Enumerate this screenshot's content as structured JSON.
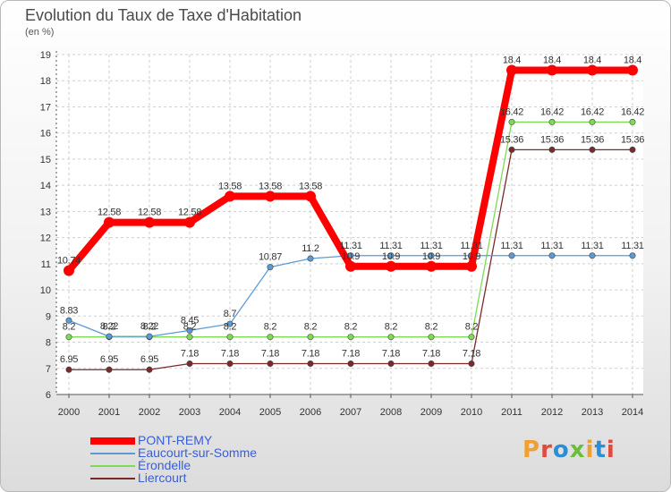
{
  "title": "Evolution du Taux de Taxe d'Habitation",
  "subtitle": "(en %)",
  "logo": {
    "text": "Proxiti",
    "colors": [
      "#f0a030",
      "#e04a3a",
      "#2a8fd4",
      "#6bbf3a",
      "#f0a030",
      "#2a8fd4",
      "#e04a3a"
    ]
  },
  "chart_data": {
    "type": "line",
    "title": "Evolution du Taux de Taxe d'Habitation",
    "ylabel": "(en %)",
    "xlabel": "",
    "ylim": [
      6,
      19
    ],
    "yticks": [
      6,
      7,
      8,
      9,
      10,
      11,
      12,
      13,
      14,
      15,
      16,
      17,
      18,
      19
    ],
    "x": [
      "2000",
      "2001",
      "2002",
      "2003",
      "2004",
      "2005",
      "2006",
      "2007",
      "2008",
      "2009",
      "2010",
      "2011",
      "2012",
      "2013",
      "2014"
    ],
    "grid": true,
    "legend_position": "bottom-left",
    "series": [
      {
        "name": "PONT-REMY",
        "color": "#ff0000",
        "values": [
          10.74,
          12.58,
          12.58,
          12.58,
          13.58,
          13.58,
          13.58,
          10.9,
          10.9,
          10.9,
          10.9,
          18.4,
          18.4,
          18.4,
          18.4
        ],
        "labels": [
          "10.74",
          "12.58",
          "12.58",
          "12.58",
          "13.58",
          "13.58",
          "13.58",
          "10.9",
          "10.9",
          "10.9",
          "10.9",
          "18.4",
          "18.4",
          "18.4",
          "18.4"
        ]
      },
      {
        "name": "Eaucourt-sur-Somme",
        "color": "#5b9bd5",
        "values": [
          8.83,
          8.22,
          8.22,
          8.45,
          8.7,
          10.87,
          11.2,
          11.31,
          11.31,
          11.31,
          11.31,
          11.31,
          11.31,
          11.31,
          11.31
        ],
        "labels": [
          "8.83",
          "8.22",
          "8.22",
          "8.45",
          "8.7",
          "10.87",
          "11.2",
          "11.31",
          "11.31",
          "11.31",
          "11.31",
          "11.31",
          "11.31",
          "11.31",
          "11.31"
        ]
      },
      {
        "name": "Érondelle",
        "color": "#7ed957",
        "values": [
          8.2,
          8.2,
          8.2,
          8.2,
          8.2,
          8.2,
          8.2,
          8.2,
          8.2,
          8.2,
          8.2,
          16.42,
          16.42,
          16.42,
          16.42
        ],
        "labels": [
          "8.2",
          "8.2",
          "8.2",
          "8.2",
          "8.2",
          "8.2",
          "8.2",
          "8.2",
          "8.2",
          "8.2",
          "8.2",
          "16.42",
          "16.42",
          "16.42",
          "16.42"
        ]
      },
      {
        "name": "Liercourt",
        "color": "#7a2a2a",
        "values": [
          6.95,
          6.95,
          6.95,
          7.18,
          7.18,
          7.18,
          7.18,
          7.18,
          7.18,
          7.18,
          7.18,
          15.36,
          15.36,
          15.36,
          15.36
        ],
        "labels": [
          "6.95",
          "6.95",
          "6.95",
          "7.18",
          "7.18",
          "7.18",
          "7.18",
          "7.18",
          "7.18",
          "7.18",
          "7.18",
          "15.36",
          "15.36",
          "15.36",
          "15.36"
        ]
      }
    ]
  }
}
